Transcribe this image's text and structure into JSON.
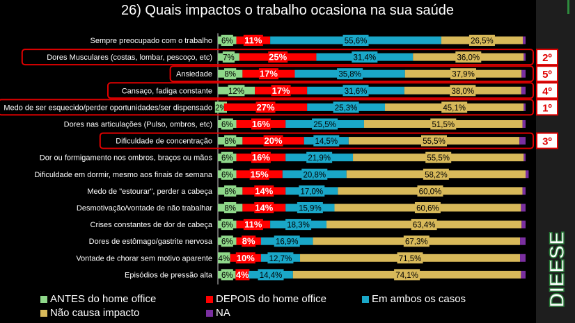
{
  "title": "26) Quais impactos o trabalho ocasiona na sua saúde",
  "colors": {
    "antes": "#8fd88a",
    "depois": "#ff0000",
    "ambos": "#1aa7c8",
    "nao": "#d8b95a",
    "na": "#7a2fa0",
    "highlight": "#e00000"
  },
  "chart_data": {
    "type": "bar",
    "orientation": "horizontal",
    "stacked": true,
    "categories": [
      "Sempre preocupado com o trabalho",
      "Dores Musculares (costas, lombar, pescoço, etc)",
      "Ansiedade",
      "Cansaço, fadiga constante",
      "Medo de ser esquecido/perder oportunidades/ser dispensado",
      "Dores nas articulações (Pulso, ombros, etc)",
      "Dificuldade de concentração",
      "Dor ou formigamento nos ombros, braços ou mãos",
      "Dificuldade em dormir, mesmo aos finais de semana",
      "Medo de \"estourar\", perder a cabeça",
      "Desmotivação/vontade de não trabalhar",
      "Crises constantes de dor de cabeça",
      "Dores de estômago/gastrite nervosa",
      "Vontade de chorar sem motivo aparente",
      "Episódios de pressão alta"
    ],
    "series": [
      {
        "name": "ANTES do home office",
        "color_key": "antes",
        "values": [
          6,
          7,
          8,
          12,
          2,
          6,
          8,
          6,
          6,
          8,
          8,
          6,
          6,
          4,
          6
        ],
        "labels": [
          "6%",
          "7%",
          "8%",
          "12%",
          "2%",
          "6%",
          "8%",
          "6%",
          "6%",
          "8%",
          "8%",
          "6%",
          "6%",
          "4%",
          "6%"
        ]
      },
      {
        "name": "DEPOIS do home office",
        "color_key": "depois",
        "values": [
          11,
          25,
          17,
          17,
          27,
          16,
          20,
          16,
          15,
          14,
          14,
          11,
          8,
          10,
          4
        ],
        "labels": [
          "11%",
          "25%",
          "17%",
          "17%",
          "27%",
          "16%",
          "20%",
          "16%",
          "15%",
          "14%",
          "14%",
          "11%",
          "8%",
          "10%",
          "4%"
        ]
      },
      {
        "name": "Em ambos os casos",
        "color_key": "ambos",
        "values": [
          55.6,
          31.4,
          35.8,
          31.6,
          25.3,
          25.5,
          14.5,
          21.9,
          20.8,
          17.0,
          15.9,
          18.3,
          16.9,
          12.7,
          14.4
        ],
        "labels": [
          "55,6%",
          "31,4%",
          "35,8%",
          "31,6%",
          "25,3%",
          "25,5%",
          "14,5%",
          "21,9%",
          "20,8%",
          "17,0%",
          "15,9%",
          "18,3%",
          "16,9%",
          "12,7%",
          "14,4%"
        ]
      },
      {
        "name": "Não causa impacto",
        "color_key": "nao",
        "values": [
          26.5,
          36.0,
          37.9,
          38.0,
          45.1,
          51.5,
          55.5,
          55.5,
          58.2,
          60.0,
          60.6,
          63.4,
          67.3,
          71.5,
          74.1
        ],
        "labels": [
          "26,5%",
          "36,0%",
          "37,9%",
          "38,0%",
          "45,1%",
          "51,5%",
          "55,5%",
          "55,5%",
          "58,2%",
          "60,0%",
          "60,6%",
          "63,4%",
          "67,3%",
          "71,5%",
          "74,1%"
        ]
      },
      {
        "name": "NA",
        "color_key": "na",
        "values": [
          0.9,
          0.6,
          1.3,
          1.4,
          0.6,
          1.0,
          2.0,
          0.6,
          1.0,
          1.0,
          1.5,
          1.3,
          1.8,
          1.8,
          1.5
        ],
        "labels": [
          "",
          "",
          "",
          "",
          "",
          "",
          "",
          "",
          "",
          "",
          "",
          "",
          "",
          "",
          ""
        ]
      }
    ],
    "highlights": [
      {
        "category_index": 1,
        "rank": "2º"
      },
      {
        "category_index": 2,
        "rank": "5º"
      },
      {
        "category_index": 3,
        "rank": "4º"
      },
      {
        "category_index": 4,
        "rank": "1º"
      },
      {
        "category_index": 6,
        "rank": "3º"
      }
    ],
    "legend": [
      {
        "label": "ANTES do home office",
        "color_key": "antes"
      },
      {
        "label": "DEPOIS do home office",
        "color_key": "depois"
      },
      {
        "label": "Em ambos os casos",
        "color_key": "ambos"
      },
      {
        "label": "Não causa impacto",
        "color_key": "nao"
      },
      {
        "label": "NA",
        "color_key": "na"
      }
    ],
    "legend_position": "bottom",
    "grid": false
  },
  "logo_text": "DIEESE"
}
